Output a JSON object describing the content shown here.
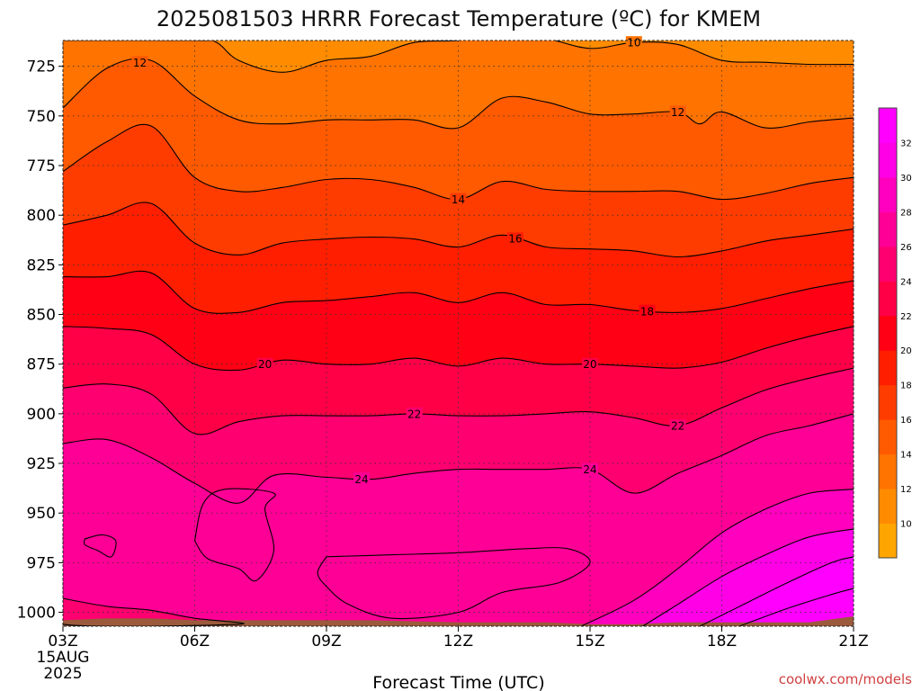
{
  "chart_data": {
    "type": "heatmap",
    "title": "2025081503 HRRR Forecast Temperature (ºC) for KMEM",
    "xlabel": "Forecast Time (UTC)",
    "ylabel": "",
    "x_ticks": [
      "03Z",
      "06Z",
      "09Z",
      "12Z",
      "15Z",
      "18Z",
      "21Z"
    ],
    "x_first_date": "15AUG",
    "x_first_year": "2025",
    "x_hours": [
      3,
      4,
      5,
      6,
      7,
      8,
      9,
      10,
      11,
      12,
      13,
      14,
      15,
      16,
      17,
      18,
      19,
      20,
      21
    ],
    "y_ticks": [
      725,
      750,
      775,
      800,
      825,
      850,
      875,
      900,
      925,
      950,
      975,
      1000
    ],
    "ylim": [
      1007,
      712
    ],
    "y_scale": "pressure (hPa), inverted",
    "grid": "dotted",
    "levels": [
      10,
      12,
      14,
      16,
      18,
      20,
      22,
      24
    ],
    "colorbar_ticks": [
      10,
      12,
      14,
      16,
      18,
      20,
      22,
      24,
      26,
      28,
      30,
      32
    ],
    "colorbar_range": [
      8,
      34
    ],
    "colorbar_colors": [
      "#ffa500",
      "#ff8c00",
      "#ff7300",
      "#ff5a00",
      "#ff3c00",
      "#ff1e00",
      "#ff0014",
      "#ff0046",
      "#ff0070",
      "#ff0096",
      "#ff00be",
      "#ff00e6",
      "#ff00ff"
    ],
    "contours": [
      {
        "level": 10,
        "labels": [
          {
            "hour": 16.0
          }
        ],
        "points": [
          [
            3,
            712
          ],
          [
            6,
            712
          ],
          [
            6.5,
            713
          ],
          [
            7,
            722
          ],
          [
            8,
            728
          ],
          [
            9,
            722
          ],
          [
            10,
            720
          ],
          [
            11,
            713
          ],
          [
            12,
            712
          ],
          [
            13,
            709
          ],
          [
            14,
            711
          ],
          [
            15,
            716
          ],
          [
            16,
            713
          ],
          [
            17,
            714
          ],
          [
            18,
            722
          ],
          [
            19,
            723
          ],
          [
            20,
            724
          ],
          [
            21,
            724
          ]
        ]
      },
      {
        "level": 12,
        "labels": [
          {
            "hour": 4.75
          },
          {
            "hour": 17.0
          }
        ],
        "points": [
          [
            3,
            746
          ],
          [
            4,
            726
          ],
          [
            5,
            722
          ],
          [
            6,
            740
          ],
          [
            7,
            752
          ],
          [
            8,
            754
          ],
          [
            9,
            752
          ],
          [
            10,
            752
          ],
          [
            11,
            752
          ],
          [
            12,
            756
          ],
          [
            13,
            741
          ],
          [
            14,
            743
          ],
          [
            15,
            749
          ],
          [
            16,
            749
          ],
          [
            17,
            748
          ],
          [
            17.5,
            754
          ],
          [
            18,
            748
          ],
          [
            19,
            756
          ],
          [
            20,
            753
          ],
          [
            21,
            751
          ]
        ]
      },
      {
        "level": 14,
        "labels": [
          {
            "hour": 12.0
          }
        ],
        "points": [
          [
            3,
            778
          ],
          [
            4,
            763
          ],
          [
            5,
            755
          ],
          [
            6,
            781
          ],
          [
            7,
            788
          ],
          [
            8,
            786
          ],
          [
            9,
            782
          ],
          [
            10,
            782
          ],
          [
            11,
            786
          ],
          [
            12,
            792
          ],
          [
            13,
            783
          ],
          [
            14,
            787
          ],
          [
            15,
            788
          ],
          [
            16,
            788
          ],
          [
            17,
            788
          ],
          [
            18,
            792
          ],
          [
            19,
            789
          ],
          [
            20,
            784
          ],
          [
            21,
            781
          ]
        ]
      },
      {
        "level": 16,
        "labels": [
          {
            "hour": 13.3
          }
        ],
        "points": [
          [
            3,
            805
          ],
          [
            4,
            800
          ],
          [
            5,
            794
          ],
          [
            6,
            814
          ],
          [
            7,
            820
          ],
          [
            8,
            814
          ],
          [
            9,
            812
          ],
          [
            10,
            811
          ],
          [
            11,
            812
          ],
          [
            12,
            816
          ],
          [
            13,
            810
          ],
          [
            14,
            816
          ],
          [
            15,
            817
          ],
          [
            16,
            818
          ],
          [
            17,
            821
          ],
          [
            18,
            818
          ],
          [
            19,
            813
          ],
          [
            20,
            810
          ],
          [
            21,
            807
          ]
        ]
      },
      {
        "level": 18,
        "labels": [
          {
            "hour": 16.3
          }
        ],
        "points": [
          [
            3,
            831
          ],
          [
            4,
            831
          ],
          [
            5,
            829
          ],
          [
            6,
            847
          ],
          [
            7,
            849
          ],
          [
            8,
            844
          ],
          [
            9,
            843
          ],
          [
            10,
            841
          ],
          [
            11,
            839
          ],
          [
            12,
            844
          ],
          [
            13,
            839
          ],
          [
            14,
            845
          ],
          [
            15,
            845
          ],
          [
            16,
            848
          ],
          [
            17,
            849
          ],
          [
            18,
            847
          ],
          [
            19,
            842
          ],
          [
            20,
            837
          ],
          [
            21,
            833
          ]
        ]
      },
      {
        "level": 20,
        "labels": [
          {
            "hour": 7.6
          },
          {
            "hour": 15.0
          }
        ],
        "points": [
          [
            3,
            856
          ],
          [
            4,
            857
          ],
          [
            5,
            860
          ],
          [
            6,
            875
          ],
          [
            7,
            878
          ],
          [
            8,
            873
          ],
          [
            9,
            875
          ],
          [
            10,
            875
          ],
          [
            11,
            872
          ],
          [
            12,
            876
          ],
          [
            13,
            872
          ],
          [
            14,
            875
          ],
          [
            15,
            875
          ],
          [
            16,
            876
          ],
          [
            17,
            877
          ],
          [
            18,
            874
          ],
          [
            19,
            867
          ],
          [
            20,
            861
          ],
          [
            21,
            856
          ]
        ]
      },
      {
        "level": 22,
        "labels": [
          {
            "hour": 11.0
          },
          {
            "hour": 17.0
          }
        ],
        "points": [
          [
            3,
            887
          ],
          [
            4,
            885
          ],
          [
            5,
            890
          ],
          [
            6,
            910
          ],
          [
            7,
            904
          ],
          [
            8,
            901
          ],
          [
            9,
            901
          ],
          [
            10,
            901
          ],
          [
            11,
            900
          ],
          [
            12,
            901
          ],
          [
            13,
            901
          ],
          [
            14,
            900
          ],
          [
            15,
            899
          ],
          [
            16,
            902
          ],
          [
            17,
            906
          ],
          [
            18,
            897
          ],
          [
            19,
            888
          ],
          [
            20,
            882
          ],
          [
            21,
            877
          ]
        ]
      },
      {
        "level": 24,
        "labels": [
          {
            "hour": 9.8
          },
          {
            "hour": 15.0
          }
        ],
        "points": [
          [
            3,
            915
          ],
          [
            4,
            913
          ],
          [
            5,
            922
          ],
          [
            6,
            935
          ],
          [
            7,
            945
          ],
          [
            7.8,
            931
          ],
          [
            9,
            932
          ],
          [
            10,
            933
          ],
          [
            11,
            930
          ],
          [
            12,
            928
          ],
          [
            13,
            928
          ],
          [
            14,
            928
          ],
          [
            15,
            928
          ],
          [
            16,
            940
          ],
          [
            17,
            930
          ],
          [
            18,
            921
          ],
          [
            19,
            911
          ],
          [
            20,
            906
          ],
          [
            21,
            900
          ]
        ]
      }
    ],
    "warm_regions": [
      {
        "level": 24,
        "points": [
          [
            3,
            993
          ],
          [
            4,
            997
          ],
          [
            5,
            999
          ],
          [
            6,
            1003
          ],
          [
            7,
            1006
          ],
          [
            3,
            1006
          ]
        ]
      },
      {
        "level": 26,
        "points": [
          [
            3.5,
            963
          ],
          [
            3.9,
            961
          ],
          [
            4.2,
            964
          ],
          [
            4.1,
            972
          ],
          [
            3.8,
            969
          ],
          [
            3.5,
            966
          ]
        ]
      },
      {
        "level": 26,
        "points": [
          [
            6,
            964
          ],
          [
            6.3,
            973
          ],
          [
            7,
            978
          ],
          [
            7.4,
            984
          ],
          [
            7.8,
            969
          ],
          [
            7.6,
            948
          ],
          [
            7.8,
            940
          ],
          [
            6.7,
            938
          ],
          [
            6.2,
            945
          ]
        ]
      }
    ],
    "cool_regions": [
      {
        "level": 24,
        "points": [
          [
            9,
            972
          ],
          [
            10.5,
            971
          ],
          [
            12,
            970
          ],
          [
            13.5,
            968
          ],
          [
            14.5,
            968
          ],
          [
            15,
            975
          ],
          [
            14.3,
            985
          ],
          [
            13,
            990
          ],
          [
            12,
            1000
          ],
          [
            10.5,
            1003
          ],
          [
            9.5,
            996
          ],
          [
            9,
            987
          ],
          [
            8.8,
            980
          ]
        ]
      }
    ],
    "warm_bands": [
      {
        "level": 26,
        "lower": [
          [
            14.8,
            1007
          ],
          [
            16,
            994
          ],
          [
            17,
            978
          ],
          [
            18,
            960
          ],
          [
            19,
            948
          ],
          [
            20,
            940
          ],
          [
            21,
            938
          ]
        ],
        "upper": [
          [
            21,
            1007
          ]
        ]
      },
      {
        "level": 28,
        "lower": [
          [
            16.2,
            1007
          ],
          [
            17,
            996
          ],
          [
            18,
            982
          ],
          [
            19,
            971
          ],
          [
            20,
            962
          ],
          [
            21,
            958
          ]
        ],
        "upper": [
          [
            21,
            1007
          ]
        ]
      },
      {
        "level": 30,
        "lower": [
          [
            17.5,
            1007
          ],
          [
            18.5,
            996
          ],
          [
            19.5,
            985
          ],
          [
            20.5,
            975
          ],
          [
            21,
            972
          ]
        ],
        "upper": [
          [
            21,
            1007
          ]
        ]
      },
      {
        "level": 32,
        "lower": [
          [
            18.4,
            1007
          ],
          [
            19.5,
            998
          ],
          [
            20.5,
            991
          ],
          [
            21,
            988
          ]
        ],
        "upper": [
          [
            21,
            1007
          ]
        ]
      }
    ],
    "ground_top": [
      [
        3,
        1004
      ],
      [
        4,
        1003
      ],
      [
        5,
        1003
      ],
      [
        6,
        1004
      ],
      [
        8,
        1004
      ],
      [
        10,
        1004
      ],
      [
        12,
        1005
      ],
      [
        14,
        1005
      ],
      [
        15,
        1006
      ],
      [
        16,
        1006
      ],
      [
        17,
        1005
      ],
      [
        18,
        1005
      ],
      [
        19,
        1005
      ],
      [
        20,
        1005
      ],
      [
        21,
        1002
      ]
    ],
    "ground_color": "#9c5a3c"
  },
  "credit": "coolwx.com/models"
}
